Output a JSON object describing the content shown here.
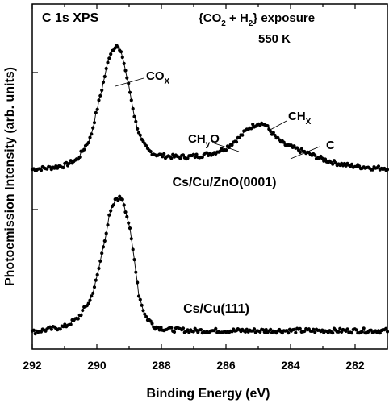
{
  "chart_data": {
    "type": "line",
    "title": "C 1s  XPS",
    "annotation_condition_line1": "{CO2 + H2} exposure",
    "annotation_condition_line2": "550 K",
    "xlabel": "Binding Energy (eV)",
    "ylabel": "Photoemission Intensity (arb. units)",
    "xlim": [
      292,
      281
    ],
    "x_reversed": true,
    "x_ticks": [
      "292",
      "290",
      "288",
      "286",
      "284",
      "282"
    ],
    "y_ticks_visible_labels": false,
    "series": [
      {
        "name": "Cs/Cu/ZnO(0001)",
        "x": [
          292.0,
          291.5,
          291.0,
          290.6,
          290.2,
          289.9,
          289.6,
          289.4,
          289.2,
          289.0,
          288.8,
          288.6,
          288.4,
          288.2,
          288.0,
          287.6,
          287.2,
          286.8,
          286.4,
          286.0,
          285.6,
          285.3,
          285.0,
          284.8,
          284.6,
          284.4,
          284.2,
          284.0,
          283.8,
          283.6,
          283.4,
          283.0,
          282.6,
          282.2,
          281.8,
          281.4,
          281.0
        ],
        "y": [
          0.0,
          0.01,
          0.03,
          0.08,
          0.25,
          0.58,
          0.92,
          1.0,
          0.9,
          0.65,
          0.38,
          0.22,
          0.15,
          0.12,
          0.11,
          0.1,
          0.1,
          0.11,
          0.13,
          0.17,
          0.25,
          0.33,
          0.37,
          0.36,
          0.3,
          0.24,
          0.2,
          0.18,
          0.16,
          0.14,
          0.12,
          0.08,
          0.05,
          0.03,
          0.02,
          0.01,
          0.01
        ]
      },
      {
        "name": "Cs/Cu(111)",
        "x": [
          292.0,
          291.5,
          291.0,
          290.6,
          290.2,
          290.0,
          289.8,
          289.6,
          289.4,
          289.2,
          289.0,
          288.8,
          288.7,
          288.5,
          288.2,
          287.8,
          287.0,
          286.0,
          285.0,
          284.0,
          283.0,
          282.0,
          281.0
        ],
        "y": [
          0.0,
          0.02,
          0.04,
          0.1,
          0.24,
          0.4,
          0.64,
          0.88,
          1.0,
          1.0,
          0.8,
          0.48,
          0.28,
          0.12,
          0.04,
          0.02,
          0.01,
          0.01,
          0.01,
          0.01,
          0.01,
          0.01,
          0.01
        ]
      }
    ],
    "annotations": [
      "COX",
      "CHyO",
      "CHX",
      "C"
    ]
  }
}
